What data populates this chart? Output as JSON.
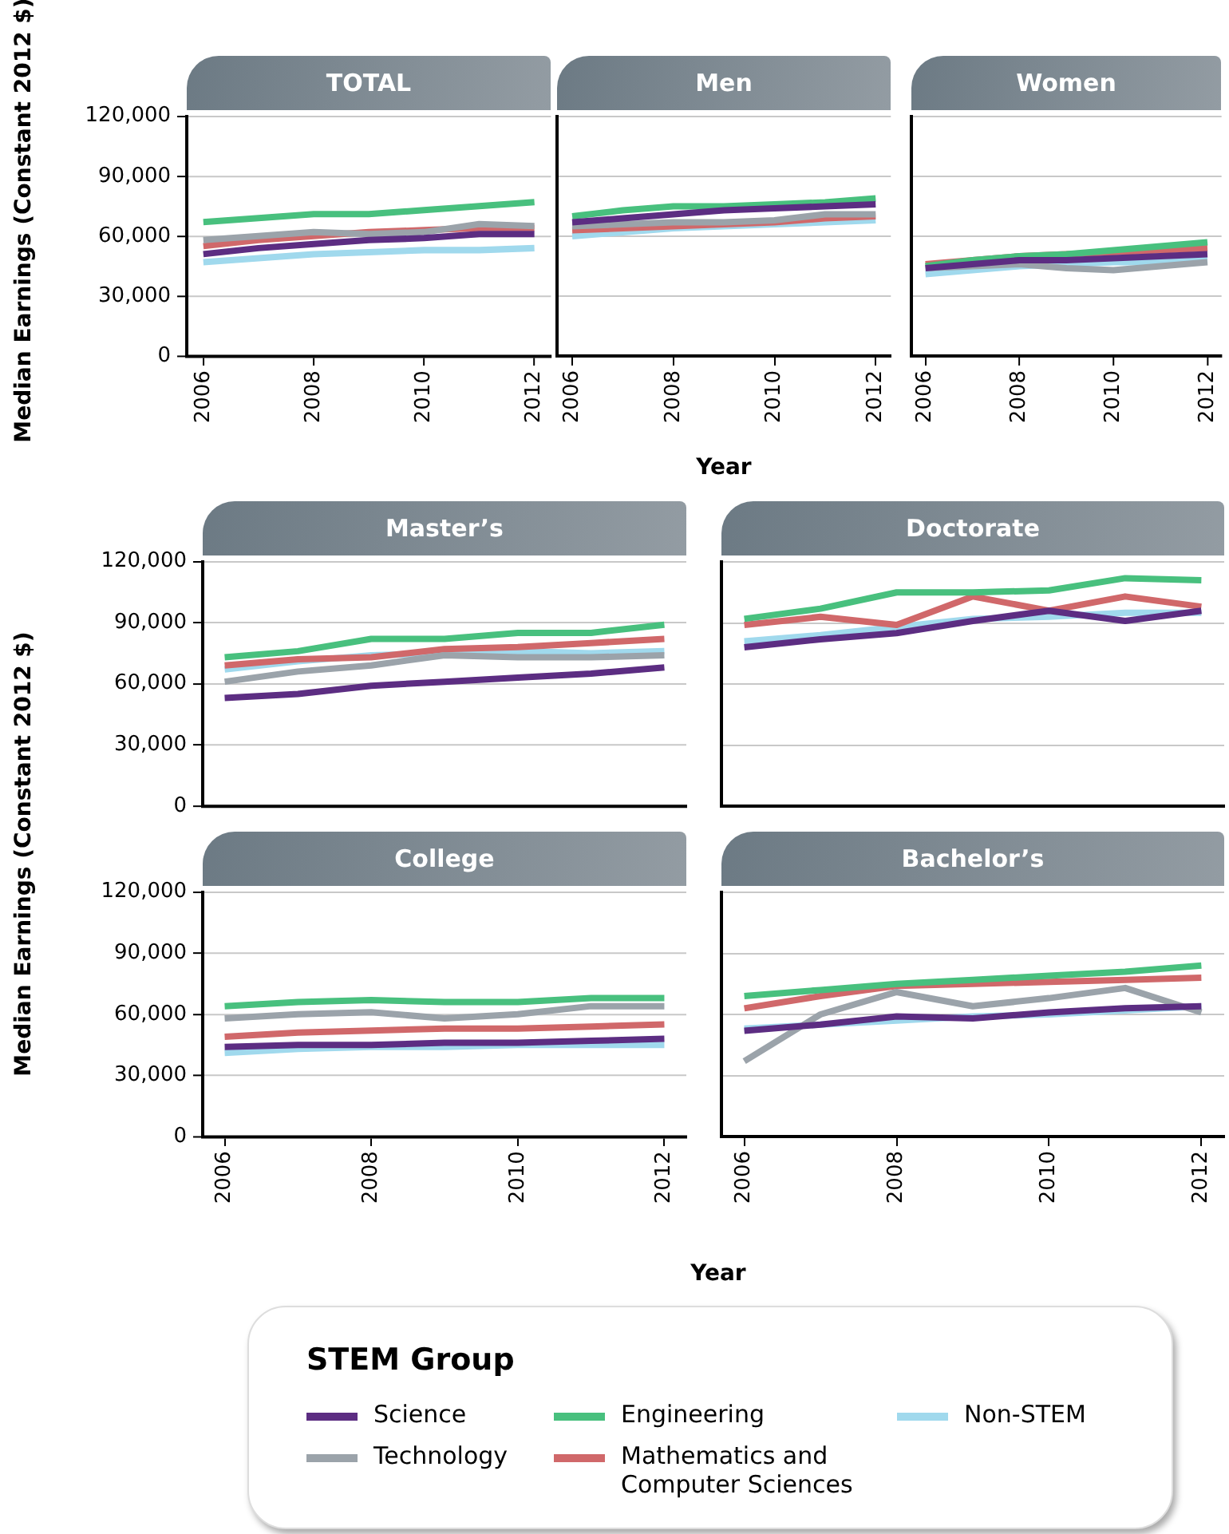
{
  "chart_data": [
    {
      "type": "line",
      "title": "TOTAL",
      "ylabel": "Median Earnings (Constant 2012 $)",
      "x": [
        2006,
        2007,
        2008,
        2009,
        2010,
        2011,
        2012
      ],
      "xlim": [
        2005.7,
        2012.3
      ],
      "xticks": [
        2006,
        2008,
        2010,
        2012
      ],
      "ylim": [
        0,
        120000
      ],
      "yticks": [
        {
          "value": 0,
          "label": "0"
        },
        {
          "value": 30000,
          "label": "30,000"
        },
        {
          "value": 60000,
          "label": "60,000"
        },
        {
          "value": 90000,
          "label": "90,000"
        },
        {
          "value": 120000,
          "label": "120,000"
        }
      ],
      "grid": "y",
      "legend": false,
      "series": [
        {
          "color": "#5c2d82",
          "values": [
            51000,
            54000,
            56000,
            58000,
            59000,
            61000,
            61000
          ]
        },
        {
          "color": "#9ba3aa",
          "values": [
            58000,
            60000,
            62000,
            61000,
            62000,
            66000,
            65000
          ]
        },
        {
          "color": "#48c07e",
          "values": [
            67000,
            69000,
            71000,
            71000,
            73000,
            75000,
            77000
          ]
        },
        {
          "color": "#d0686a",
          "values": [
            55000,
            58000,
            60000,
            62000,
            63000,
            64000,
            64000
          ]
        },
        {
          "color": "#a0d9ed",
          "values": [
            47000,
            49000,
            51000,
            52000,
            53000,
            53000,
            54000
          ]
        }
      ]
    },
    {
      "type": "line",
      "title": "Men",
      "xlabel": "Year",
      "x": [
        2006,
        2007,
        2008,
        2009,
        2010,
        2011,
        2012
      ],
      "xlim": [
        2005.7,
        2012.3
      ],
      "xticks": [
        2006,
        2008,
        2010,
        2012
      ],
      "ylim": [
        0,
        120000
      ],
      "yticks": [
        {
          "value": 0,
          "label": null
        },
        {
          "value": 30000,
          "label": null
        },
        {
          "value": 60000,
          "label": null
        },
        {
          "value": 90000,
          "label": null
        },
        {
          "value": 120000,
          "label": null
        }
      ],
      "grid": "y",
      "legend": false,
      "tick_labels": "x",
      "series": [
        {
          "color": "#5c2d82",
          "values": [
            67000,
            69000,
            71000,
            73000,
            74000,
            75000,
            76000
          ]
        },
        {
          "color": "#9ba3aa",
          "values": [
            65000,
            66000,
            67000,
            67000,
            68000,
            71000,
            71000
          ]
        },
        {
          "color": "#48c07e",
          "values": [
            70000,
            73000,
            75000,
            75000,
            76000,
            77000,
            79000
          ]
        },
        {
          "color": "#d0686a",
          "values": [
            63000,
            64000,
            65000,
            66000,
            67000,
            69000,
            70000
          ]
        },
        {
          "color": "#a0d9ed",
          "values": [
            60000,
            62000,
            64000,
            65000,
            66000,
            67000,
            68000
          ]
        }
      ]
    },
    {
      "type": "line",
      "title": "Women",
      "x": [
        2006,
        2007,
        2008,
        2009,
        2010,
        2011,
        2012
      ],
      "xlim": [
        2005.7,
        2012.3
      ],
      "xticks": [
        2006,
        2008,
        2010,
        2012
      ],
      "ylim": [
        0,
        120000
      ],
      "yticks": [
        {
          "value": 0,
          "label": null
        },
        {
          "value": 30000,
          "label": null
        },
        {
          "value": 60000,
          "label": null
        },
        {
          "value": 90000,
          "label": null
        },
        {
          "value": 120000,
          "label": null
        }
      ],
      "grid": "y",
      "legend": false,
      "tick_labels": "x",
      "series": [
        {
          "color": "#5c2d82",
          "values": [
            44000,
            46000,
            48000,
            48000,
            49000,
            50000,
            51000
          ]
        },
        {
          "color": "#9ba3aa",
          "values": [
            44000,
            45000,
            46000,
            44000,
            43000,
            45000,
            47000
          ]
        },
        {
          "color": "#48c07e",
          "values": [
            45000,
            48000,
            50000,
            51000,
            53000,
            55000,
            57000
          ]
        },
        {
          "color": "#d0686a",
          "values": [
            46000,
            48000,
            50000,
            51000,
            52000,
            53000,
            54000
          ]
        },
        {
          "color": "#a0d9ed",
          "values": [
            41000,
            43000,
            45000,
            46000,
            47000,
            47000,
            48000
          ]
        }
      ]
    },
    {
      "type": "line",
      "title": "Master’s",
      "x": [
        2006,
        2007,
        2008,
        2009,
        2010,
        2011,
        2012
      ],
      "xlim": [
        2005.7,
        2012.3
      ],
      "ylim": [
        0,
        120000
      ],
      "yticks": [
        {
          "value": 0,
          "label": "0"
        },
        {
          "value": 30000,
          "label": "30,000"
        },
        {
          "value": 60000,
          "label": "60,000"
        },
        {
          "value": 90000,
          "label": "90,000"
        },
        {
          "value": 120000,
          "label": "120,000"
        }
      ],
      "grid": "y",
      "legend": false,
      "tick_labels": "y",
      "series": [
        {
          "color": "#5c2d82",
          "values": [
            53000,
            55000,
            59000,
            61000,
            63000,
            65000,
            68000
          ]
        },
        {
          "color": "#9ba3aa",
          "values": [
            61000,
            66000,
            69000,
            74000,
            73000,
            73000,
            74000
          ]
        },
        {
          "color": "#48c07e",
          "values": [
            73000,
            76000,
            82000,
            82000,
            85000,
            85000,
            89000
          ]
        },
        {
          "color": "#d0686a",
          "values": [
            69000,
            72000,
            73000,
            77000,
            78000,
            80000,
            82000
          ]
        },
        {
          "color": "#a0d9ed",
          "values": [
            67000,
            71000,
            74000,
            75000,
            76000,
            75000,
            76000
          ]
        }
      ]
    },
    {
      "type": "line",
      "title": "Doctorate",
      "x": [
        2006,
        2007,
        2008,
        2009,
        2010,
        2011,
        2012
      ],
      "xlim": [
        2005.7,
        2012.3
      ],
      "ylim": [
        0,
        120000
      ],
      "yticks": [
        {
          "value": 0,
          "label": null
        },
        {
          "value": 30000,
          "label": null
        },
        {
          "value": 60000,
          "label": null
        },
        {
          "value": 90000,
          "label": null
        },
        {
          "value": 120000,
          "label": null
        }
      ],
      "grid": "y",
      "legend": false,
      "tick_labels": false,
      "series": [
        {
          "color": "#5c2d82",
          "values": [
            78000,
            82000,
            85000,
            91000,
            96000,
            91000,
            96000
          ]
        },
        {
          "color": "#48c07e",
          "values": [
            92000,
            97000,
            105000,
            105000,
            106000,
            112000,
            111000
          ]
        },
        {
          "color": "#d0686a",
          "values": [
            89000,
            93000,
            89000,
            103000,
            96000,
            103000,
            98000
          ]
        },
        {
          "color": "#a0d9ed",
          "values": [
            81000,
            84000,
            88000,
            92000,
            93000,
            95000,
            95000
          ]
        }
      ]
    },
    {
      "type": "line",
      "title": "College",
      "ylabel": "Median Earnings (Constant 2012 $)",
      "x": [
        2006,
        2007,
        2008,
        2009,
        2010,
        2011,
        2012
      ],
      "xlim": [
        2005.7,
        2012.3
      ],
      "xticks": [
        2006,
        2008,
        2010,
        2012
      ],
      "ylim": [
        0,
        120000
      ],
      "yticks": [
        {
          "value": 0,
          "label": "0"
        },
        {
          "value": 30000,
          "label": "30,000"
        },
        {
          "value": 60000,
          "label": "60,000"
        },
        {
          "value": 90000,
          "label": "90,000"
        },
        {
          "value": 120000,
          "label": "120,000"
        }
      ],
      "grid": "y",
      "legend": false,
      "series": [
        {
          "color": "#5c2d82",
          "values": [
            44000,
            45000,
            45000,
            46000,
            46000,
            47000,
            48000
          ]
        },
        {
          "color": "#9ba3aa",
          "values": [
            58000,
            60000,
            61000,
            58000,
            60000,
            64000,
            64000
          ]
        },
        {
          "color": "#48c07e",
          "values": [
            64000,
            66000,
            67000,
            66000,
            66000,
            68000,
            68000
          ]
        },
        {
          "color": "#d0686a",
          "values": [
            49000,
            51000,
            52000,
            53000,
            53000,
            54000,
            55000
          ]
        },
        {
          "color": "#a0d9ed",
          "values": [
            41000,
            43000,
            44000,
            44000,
            45000,
            45000,
            45000
          ]
        }
      ]
    },
    {
      "type": "line",
      "title": "Bachelor’s",
      "xlabel": "Year",
      "legend_title": "STEM Group",
      "x": [
        2006,
        2007,
        2008,
        2009,
        2010,
        2011,
        2012
      ],
      "xlim": [
        2005.7,
        2012.3
      ],
      "xticks": [
        2006,
        2008,
        2010,
        2012
      ],
      "ylim": [
        0,
        120000
      ],
      "yticks": [
        {
          "value": 0,
          "label": null
        },
        {
          "value": 30000,
          "label": null
        },
        {
          "value": 60000,
          "label": null
        },
        {
          "value": 90000,
          "label": null
        },
        {
          "value": 120000,
          "label": null
        }
      ],
      "grid": "y",
      "legend": "bottom",
      "tick_labels": "x",
      "series": [
        {
          "name": "Science",
          "color": "#5c2d82",
          "values": [
            52000,
            55000,
            59000,
            58000,
            61000,
            63000,
            64000
          ]
        },
        {
          "name": "Technology",
          "color": "#9ba3aa",
          "values": [
            37000,
            60000,
            71000,
            64000,
            68000,
            73000,
            61000
          ]
        },
        {
          "name": "Engineering",
          "color": "#48c07e",
          "values": [
            69000,
            72000,
            75000,
            77000,
            79000,
            81000,
            84000
          ]
        },
        {
          "name": "Mathematics and Computer Sciences",
          "color": "#d0686a",
          "values": [
            63000,
            69000,
            74000,
            75000,
            76000,
            77000,
            78000
          ]
        },
        {
          "name": "Non-STEM",
          "color": "#a0d9ed",
          "values": [
            53000,
            55000,
            57000,
            59000,
            60000,
            62000,
            64000
          ]
        }
      ]
    }
  ]
}
